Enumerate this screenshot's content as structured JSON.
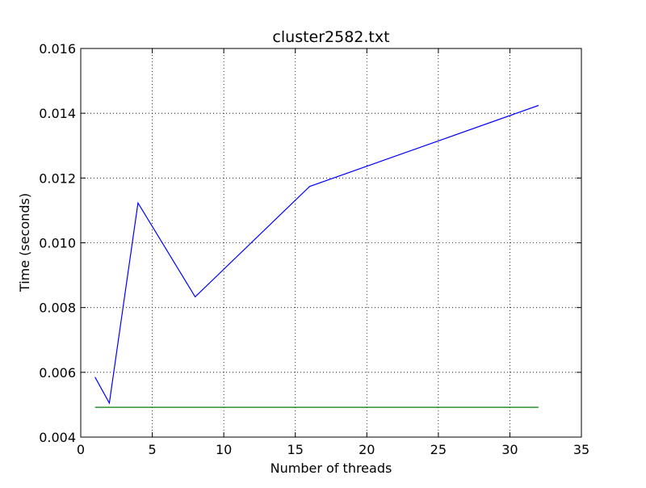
{
  "chart_data": {
    "type": "line",
    "title": "cluster2582.txt",
    "xlabel": "Number of threads",
    "ylabel": "Time (seconds)",
    "xlim": [
      0,
      35
    ],
    "ylim": [
      0.004,
      0.016
    ],
    "xticks": [
      0,
      5,
      10,
      15,
      20,
      25,
      30,
      35
    ],
    "yticks": [
      0.004,
      0.006,
      0.008,
      0.01,
      0.012,
      0.014,
      0.016
    ],
    "xtick_labels": [
      "0",
      "5",
      "10",
      "15",
      "20",
      "25",
      "30",
      "35"
    ],
    "ytick_labels": [
      "0.004",
      "0.006",
      "0.008",
      "0.010",
      "0.012",
      "0.014",
      "0.016"
    ],
    "grid": true,
    "series": [
      {
        "color": "#0000ff",
        "x": [
          1,
          2,
          4,
          8,
          16,
          32
        ],
        "y": [
          0.00585,
          0.00505,
          0.01123,
          0.00833,
          0.01174,
          0.01424
        ]
      },
      {
        "color": "#008000",
        "x": [
          1,
          32
        ],
        "y": [
          0.00492,
          0.00492
        ]
      }
    ]
  }
}
